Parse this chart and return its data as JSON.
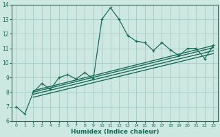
{
  "xlabel": "Humidex (Indice chaleur)",
  "bg_color": "#cce8e0",
  "grid_color": "#aacfc8",
  "line_color": "#1a6b5a",
  "xlim": [
    -0.5,
    23.5
  ],
  "ylim": [
    6,
    14
  ],
  "xticks": [
    0,
    1,
    2,
    3,
    4,
    5,
    6,
    7,
    8,
    9,
    10,
    11,
    12,
    13,
    14,
    15,
    16,
    17,
    18,
    19,
    20,
    21,
    22,
    23
  ],
  "yticks": [
    6,
    7,
    8,
    9,
    10,
    11,
    12,
    13,
    14
  ],
  "series1_x": [
    0,
    1,
    2,
    3,
    4,
    5,
    6,
    7,
    8,
    9,
    10,
    11,
    12,
    13,
    14,
    15,
    16,
    17,
    18,
    19,
    20,
    21,
    22,
    23
  ],
  "series1_y": [
    7.0,
    6.5,
    8.0,
    8.6,
    8.2,
    9.0,
    9.2,
    8.9,
    9.35,
    8.9,
    13.0,
    13.8,
    13.0,
    11.9,
    11.5,
    11.4,
    10.85,
    11.4,
    10.9,
    10.5,
    11.0,
    11.0,
    10.3,
    11.2
  ],
  "linear_lines": [
    {
      "x": [
        2,
        23
      ],
      "y": [
        8.1,
        11.2
      ]
    },
    {
      "x": [
        2,
        23
      ],
      "y": [
        8.0,
        11.05
      ]
    },
    {
      "x": [
        2,
        23
      ],
      "y": [
        7.85,
        10.85
      ]
    },
    {
      "x": [
        2,
        23
      ],
      "y": [
        7.65,
        10.65
      ]
    }
  ]
}
